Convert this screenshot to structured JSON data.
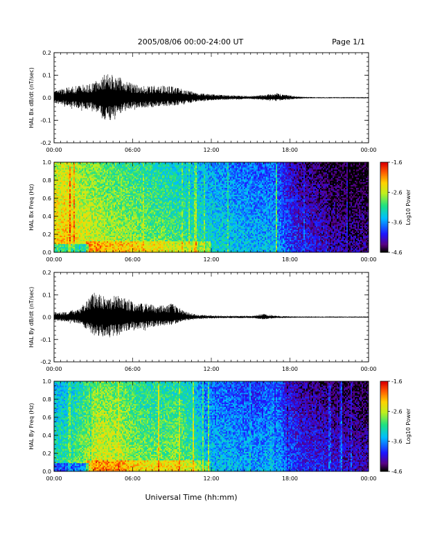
{
  "header": {
    "title": "2005/08/06  00:00-24:00 UT",
    "page": "Page 1/1"
  },
  "footer": {
    "xlabel": "Universal Time (hh:mm)"
  },
  "colorbar": {
    "label": "Log10 Power",
    "ticks": [
      "-1.6",
      "-2.6",
      "-3.6",
      "-4.6"
    ],
    "range": [
      -4.6,
      -1.6
    ],
    "colormap": [
      "#000000",
      "#5a0080",
      "#1a10ff",
      "#00c0ff",
      "#20e080",
      "#c0f020",
      "#ffd000",
      "#ff6000",
      "#e00000"
    ]
  },
  "chart_data": [
    {
      "type": "line",
      "title": "",
      "xlabel": "",
      "ylabel": "HAL Bx dB/dt (nT/sec)",
      "xlim": [
        0,
        24
      ],
      "ylim": [
        -0.2,
        0.2
      ],
      "xticks": [
        "00:00",
        "06:00",
        "12:00",
        "18:00",
        "00:00"
      ],
      "yticks": [
        "-0.2",
        "-0.1",
        "0.0",
        "0.1",
        "0.2"
      ],
      "series": [
        {
          "x": [
            0,
            1,
            2,
            3,
            4,
            5,
            6,
            7,
            8,
            9,
            10,
            11,
            12,
            13,
            14,
            15,
            16,
            17,
            18,
            19,
            20,
            21,
            22,
            23,
            24
          ],
          "max": [
            0.03,
            0.045,
            0.055,
            0.065,
            0.11,
            0.09,
            0.06,
            0.05,
            0.055,
            0.05,
            0.035,
            0.02,
            0.015,
            0.012,
            0.01,
            0.008,
            0.012,
            0.02,
            0.01,
            0.004,
            0.003,
            0.003,
            0.003,
            0.003,
            0.003
          ],
          "min": [
            -0.03,
            -0.045,
            -0.06,
            -0.07,
            -0.14,
            -0.09,
            -0.06,
            -0.055,
            -0.05,
            -0.045,
            -0.035,
            -0.02,
            -0.015,
            -0.012,
            -0.01,
            -0.008,
            -0.012,
            -0.018,
            -0.01,
            -0.004,
            -0.003,
            -0.003,
            -0.003,
            -0.003,
            -0.003
          ]
        }
      ]
    },
    {
      "type": "heatmap",
      "title": "",
      "xlabel": "",
      "ylabel": "HAL Bx Freq (Hz)",
      "xlim": [
        0,
        24
      ],
      "ylim": [
        0,
        1.0
      ],
      "xticks": [
        "00:00",
        "06:00",
        "12:00",
        "18:00",
        "00:00"
      ],
      "yticks": [
        "0.0",
        "0.2",
        "0.4",
        "0.6",
        "0.8",
        "1.0"
      ],
      "zlabel": "Log10 Power",
      "zlim": [
        -4.6,
        -1.6
      ],
      "hour_power_level": [
        0.78,
        0.8,
        0.72,
        0.7,
        0.66,
        0.65,
        0.62,
        0.6,
        0.58,
        0.55,
        0.52,
        0.48,
        0.45,
        0.42,
        0.4,
        0.38,
        0.4,
        0.28,
        0.2,
        0.18,
        0.15,
        0.12,
        0.1,
        0.1
      ]
    },
    {
      "type": "line",
      "title": "",
      "xlabel": "",
      "ylabel": "HAL By dB/dt (nT/sec)",
      "xlim": [
        0,
        24
      ],
      "ylim": [
        -0.2,
        0.2
      ],
      "xticks": [
        "00:00",
        "06:00",
        "12:00",
        "18:00",
        "00:00"
      ],
      "yticks": [
        "-0.2",
        "-0.1",
        "0.0",
        "0.1",
        "0.2"
      ],
      "series": [
        {
          "x": [
            0,
            1,
            2,
            3,
            4,
            5,
            6,
            7,
            8,
            9,
            10,
            11,
            12,
            13,
            14,
            15,
            16,
            17,
            18,
            19,
            20,
            21,
            22,
            23,
            24
          ],
          "max": [
            0.02,
            0.025,
            0.04,
            0.11,
            0.09,
            0.1,
            0.07,
            0.06,
            0.05,
            0.06,
            0.025,
            0.01,
            0.008,
            0.006,
            0.006,
            0.006,
            0.015,
            0.006,
            0.004,
            0.003,
            0.003,
            0.003,
            0.003,
            0.003,
            0.003
          ],
          "min": [
            -0.02,
            -0.025,
            -0.04,
            -0.1,
            -0.12,
            -0.1,
            -0.07,
            -0.06,
            -0.05,
            -0.045,
            -0.02,
            -0.01,
            -0.008,
            -0.006,
            -0.006,
            -0.006,
            -0.012,
            -0.006,
            -0.004,
            -0.003,
            -0.003,
            -0.003,
            -0.003,
            -0.003,
            -0.003
          ]
        }
      ]
    },
    {
      "type": "heatmap",
      "title": "",
      "xlabel": "",
      "ylabel": "HAL By Freq (Hz)",
      "xlim": [
        0,
        24
      ],
      "ylim": [
        0,
        1.0
      ],
      "xticks": [
        "00:00",
        "06:00",
        "12:00",
        "18:00",
        "00:00"
      ],
      "yticks": [
        "0.0",
        "0.2",
        "0.4",
        "0.6",
        "0.8",
        "1.0"
      ],
      "zlabel": "Log10 Power",
      "zlim": [
        -4.6,
        -1.6
      ],
      "hour_power_level": [
        0.5,
        0.52,
        0.6,
        0.72,
        0.7,
        0.68,
        0.62,
        0.6,
        0.6,
        0.62,
        0.55,
        0.42,
        0.4,
        0.38,
        0.36,
        0.35,
        0.4,
        0.3,
        0.22,
        0.2,
        0.18,
        0.16,
        0.15,
        0.14
      ]
    }
  ]
}
